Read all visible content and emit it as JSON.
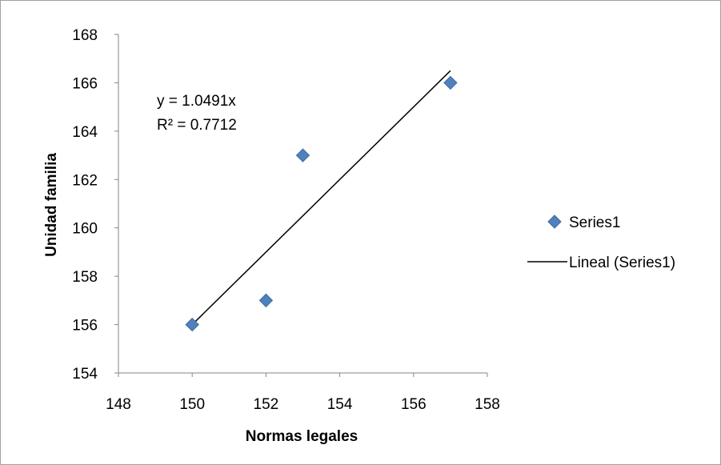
{
  "chart_data": {
    "type": "scatter",
    "xlabel": "Normas legales",
    "ylabel": "Unidad familia",
    "xlim": [
      148,
      158
    ],
    "ylim": [
      154,
      168
    ],
    "x_ticks": [
      148,
      150,
      152,
      154,
      156,
      158
    ],
    "y_ticks": [
      154,
      156,
      158,
      160,
      162,
      164,
      166,
      168
    ],
    "grid": false,
    "legend_position": "right",
    "series": [
      {
        "name": "Series1",
        "marker": "diamond",
        "color": "#4f81bd",
        "points": [
          {
            "x": 150,
            "y": 156
          },
          {
            "x": 152,
            "y": 157
          },
          {
            "x": 153,
            "y": 163
          },
          {
            "x": 157,
            "y": 166
          }
        ]
      }
    ],
    "trendline": {
      "name": "Lineal (Series1)",
      "type": "linear",
      "slope": 1.0491,
      "intercept": 0,
      "x_range": [
        150,
        157
      ],
      "color": "#000000"
    },
    "annotations": {
      "equation": "y = 1.0491x",
      "r_squared": "R² = 0.7712"
    }
  }
}
